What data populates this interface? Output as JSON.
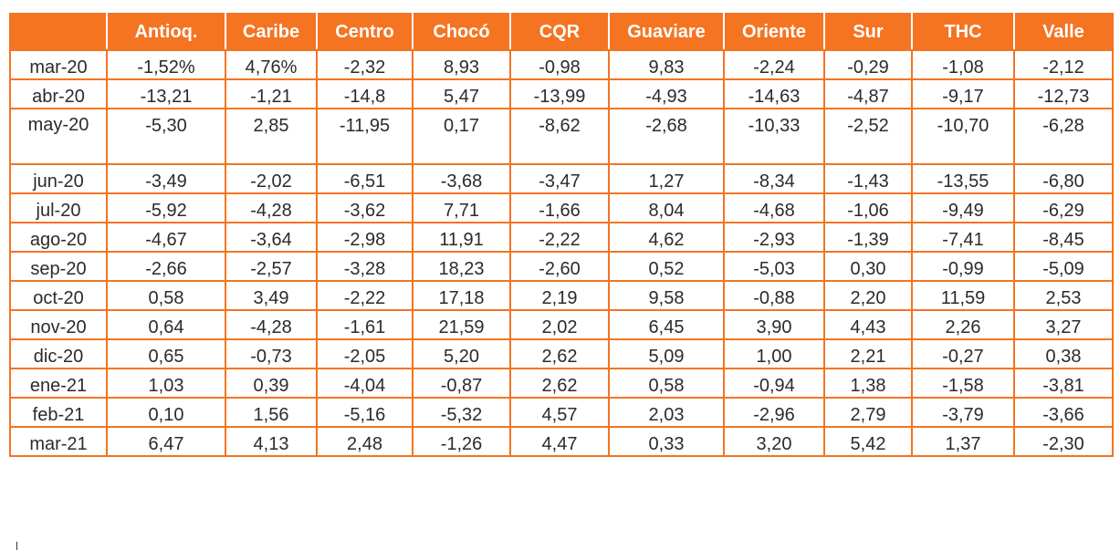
{
  "table": {
    "headers": [
      "",
      "Antioq.",
      "Caribe",
      "Centro",
      "Chocó",
      "CQR",
      "Guaviare",
      "Oriente",
      "Sur",
      "THC",
      "Valle"
    ],
    "rows": [
      {
        "label": "mar-20",
        "values": [
          "-1,52%",
          "4,76%",
          "-2,32",
          "8,93",
          "-0,98",
          "9,83",
          "-2,24",
          "-0,29",
          "-1,08",
          "-2,12"
        ]
      },
      {
        "label": "abr-20",
        "values": [
          "-13,21",
          "-1,21",
          "-14,8",
          "5,47",
          "-13,99",
          "-4,93",
          "-14,63",
          "-4,87",
          "-9,17",
          "-12,73"
        ]
      },
      {
        "label": "may-20",
        "values": [
          "-5,30",
          "2,85",
          "-11,95",
          "0,17",
          "-8,62",
          "-2,68",
          "-10,33",
          "-2,52",
          "-10,70",
          "-6,28"
        ]
      },
      {
        "label": "jun-20",
        "values": [
          "-3,49",
          "-2,02",
          "-6,51",
          "-3,68",
          "-3,47",
          "1,27",
          "-8,34",
          "-1,43",
          "-13,55",
          "-6,80"
        ]
      },
      {
        "label": "jul-20",
        "values": [
          "-5,92",
          "-4,28",
          "-3,62",
          "7,71",
          "-1,66",
          "8,04",
          "-4,68",
          "-1,06",
          "-9,49",
          "-6,29"
        ]
      },
      {
        "label": "ago-20",
        "values": [
          "-4,67",
          "-3,64",
          "-2,98",
          "11,91",
          "-2,22",
          "4,62",
          "-2,93",
          "-1,39",
          "-7,41",
          "-8,45"
        ]
      },
      {
        "label": "sep-20",
        "values": [
          "-2,66",
          "-2,57",
          "-3,28",
          "18,23",
          "-2,60",
          "0,52",
          "-5,03",
          "0,30",
          "-0,99",
          "-5,09"
        ]
      },
      {
        "label": "oct-20",
        "values": [
          "0,58",
          "3,49",
          "-2,22",
          "17,18",
          "2,19",
          "9,58",
          "-0,88",
          "2,20",
          "11,59",
          "2,53"
        ]
      },
      {
        "label": "nov-20",
        "values": [
          "0,64",
          "-4,28",
          "-1,61",
          "21,59",
          "2,02",
          "6,45",
          "3,90",
          "4,43",
          "2,26",
          "3,27"
        ]
      },
      {
        "label": "dic-20",
        "values": [
          "0,65",
          "-0,73",
          "-2,05",
          "5,20",
          "2,62",
          "5,09",
          "1,00",
          "2,21",
          "-0,27",
          "0,38"
        ]
      },
      {
        "label": "ene-21",
        "values": [
          "1,03",
          "0,39",
          "-4,04",
          "-0,87",
          "2,62",
          "0,58",
          "-0,94",
          "1,38",
          "-1,58",
          "-3,81"
        ]
      },
      {
        "label": "feb-21",
        "values": [
          "0,10",
          "1,56",
          "-5,16",
          "-5,32",
          "4,57",
          "2,03",
          "-2,96",
          "2,79",
          "-3,79",
          "-3,66"
        ]
      },
      {
        "label": "mar-21",
        "values": [
          "6,47",
          "4,13",
          "2,48",
          "-1,26",
          "4,47",
          "0,33",
          "3,20",
          "5,42",
          "1,37",
          "-2,30"
        ]
      }
    ]
  },
  "colors": {
    "accent": "#f47421",
    "header_text": "#ffffff",
    "cell_text": "#2b2b2b"
  }
}
